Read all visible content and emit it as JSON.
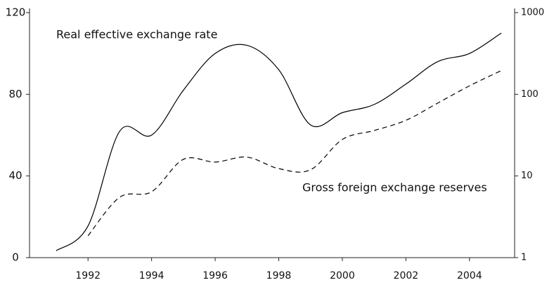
{
  "chart_data": {
    "type": "line",
    "x": [
      1991,
      1992,
      1993,
      1994,
      1995,
      1996,
      1997,
      1998,
      1999,
      2000,
      2001,
      2002,
      2003,
      2004,
      2005
    ],
    "series": [
      {
        "name": "Real effective exchange rate",
        "color": "#000000",
        "dash": "solid",
        "values": [
          3.4,
          15.5,
          62,
          60,
          82,
          100,
          104,
          92,
          65,
          71,
          75,
          85,
          96,
          100,
          110
        ]
      },
      {
        "name": "Gross foreign exchange reserves",
        "color": "#000000",
        "dash": "dashed",
        "axis": "y2",
        "values": [
          null,
          1.85,
          5.5,
          6.4,
          16,
          14.8,
          17,
          12.3,
          11.9,
          28,
          36,
          48,
          78,
          127,
          195
        ]
      }
    ],
    "xlim": [
      1990.16,
      2005.42
    ],
    "xticks": [
      1992,
      1994,
      1996,
      1998,
      2000,
      2002,
      2004
    ],
    "ylim": [
      0,
      120
    ],
    "yticks": [
      0,
      40,
      80,
      120
    ],
    "y2lim": [
      1,
      1000
    ],
    "y2ticks": [
      1,
      10,
      100,
      1000
    ],
    "y2scale": "log",
    "grid": false
  }
}
